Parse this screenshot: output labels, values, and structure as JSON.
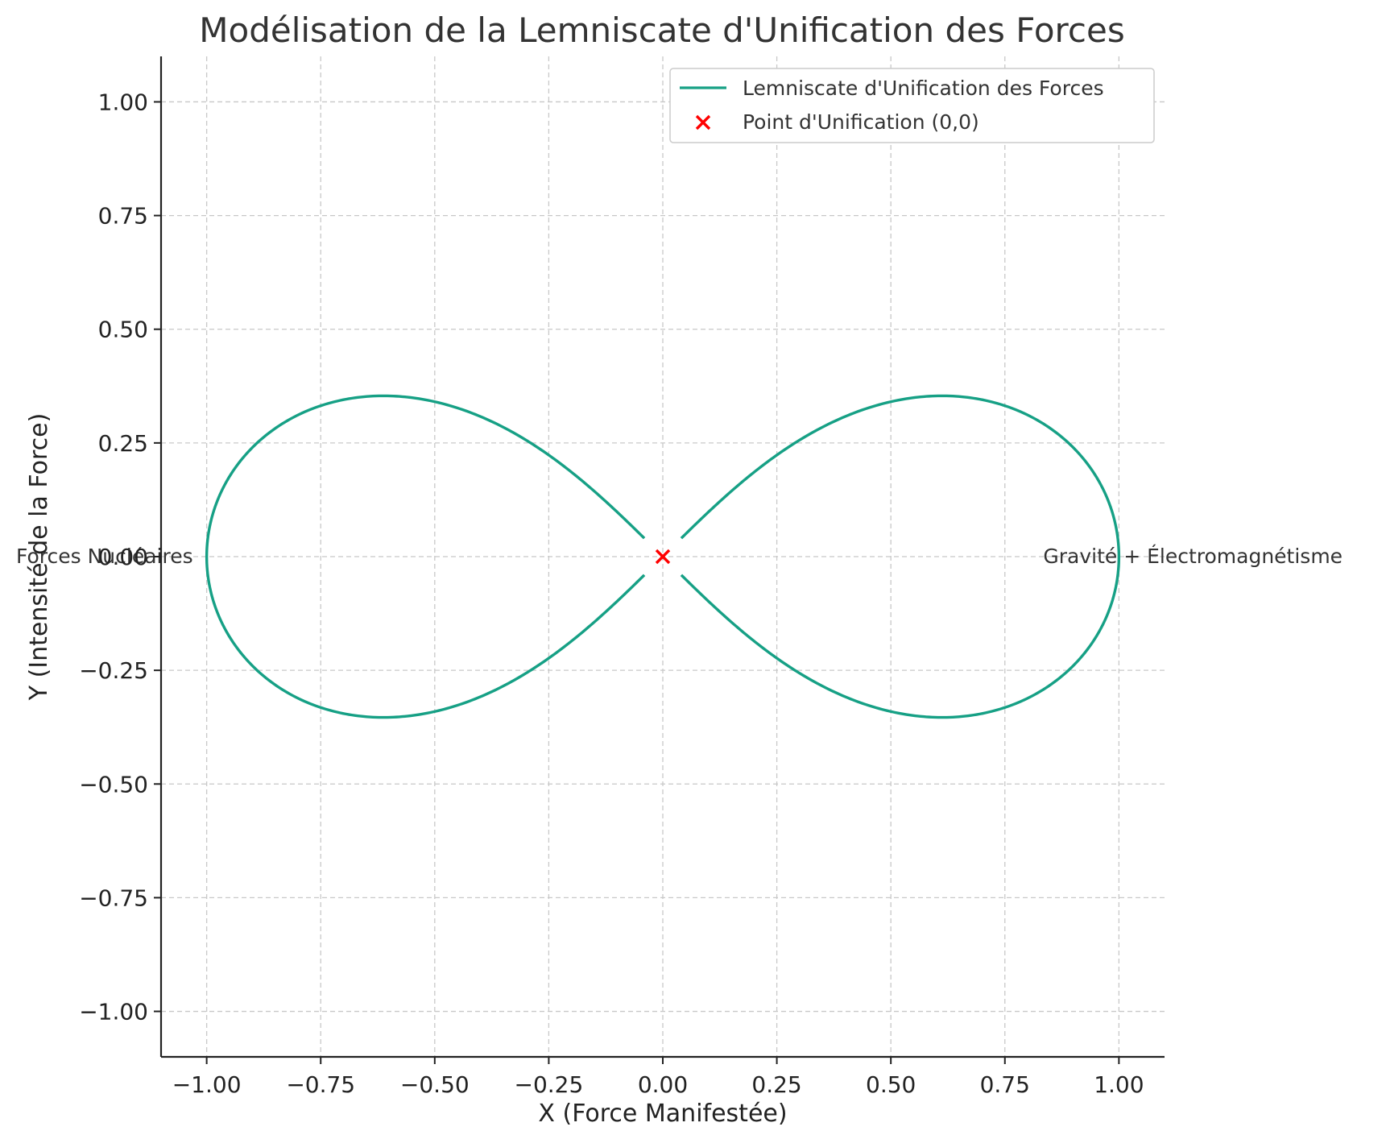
{
  "chart_data": {
    "type": "line",
    "title": "Modélisation de la Lemniscate d'Unification des Forces",
    "xlabel": "X (Force Manifestée)",
    "ylabel": "Y (Intensité de la Force)",
    "xlim": [
      -1.1,
      1.1
    ],
    "ylim": [
      -1.1,
      1.1
    ],
    "xticks": [
      -1.0,
      -0.75,
      -0.5,
      -0.25,
      0.0,
      0.25,
      0.5,
      0.75,
      1.0
    ],
    "yticks": [
      -1.0,
      -0.75,
      -0.5,
      -0.25,
      0.0,
      0.25,
      0.5,
      0.75,
      1.0
    ],
    "xtick_labels": [
      "−1.00",
      "−0.75",
      "−0.50",
      "−0.25",
      "0.00",
      "0.25",
      "0.50",
      "0.75",
      "1.00"
    ],
    "ytick_labels": [
      "−1.00",
      "−0.75",
      "−0.50",
      "−0.25",
      "0.00",
      "0.25",
      "0.50",
      "0.75",
      "1.00"
    ],
    "grid": true,
    "legend_position": "top-right",
    "series": [
      {
        "name": "Lemniscate d'Unification des Forces",
        "kind": "line",
        "color": "#16a085",
        "equation": "lemniscate of Bernoulli, a = 1",
        "x": [
          1.0,
          0.9899,
          0.9609,
          0.9152,
          0.8566,
          0.7888,
          0.7148,
          0.6371,
          0.5573,
          0.4765,
          0.3952,
          0.3139,
          0.2325,
          0.1511,
          0.0698,
          -0.0698,
          -0.1511,
          -0.2325,
          -0.3139,
          -0.3952,
          -0.4765,
          -0.5573,
          -0.6371,
          -0.7148,
          -0.7888,
          -0.8566,
          -0.9152,
          -0.9609,
          -0.9899,
          -1.0,
          -0.9899,
          -0.9609,
          -0.9152,
          -0.8566,
          -0.7888,
          -0.7148,
          -0.6371,
          -0.5573,
          -0.4765,
          -0.3952,
          -0.3139,
          -0.2325,
          -0.1511,
          -0.0698,
          0.0698,
          0.1511,
          0.2325,
          0.3139,
          0.3952,
          0.4765,
          0.5573,
          0.6371,
          0.7148,
          0.7888,
          0.8566,
          0.9152,
          0.9609,
          0.9899,
          1.0
        ],
        "y": [
          0.0,
          0.0866,
          0.1694,
          0.2452,
          0.3118,
          0.3622,
          0.386,
          0.3944,
          0.3846,
          0.3615,
          0.3281,
          0.2861,
          0.2364,
          0.1798,
          0.1151,
          -0.1151,
          -0.1798,
          -0.2364,
          -0.2861,
          -0.3281,
          -0.3615,
          -0.3846,
          -0.3944,
          -0.386,
          -0.3622,
          -0.3118,
          -0.2452,
          -0.1694,
          -0.0866,
          0.0,
          0.0866,
          0.1694,
          0.2452,
          0.3118,
          0.3622,
          0.386,
          0.3944,
          0.3846,
          0.3615,
          0.3281,
          0.2861,
          0.2364,
          0.1798,
          0.1151,
          -0.1151,
          -0.1798,
          -0.2364,
          -0.2861,
          -0.3281,
          -0.3615,
          -0.3846,
          -0.3944,
          -0.386,
          -0.3622,
          -0.3118,
          -0.2452,
          -0.1694,
          -0.0866,
          0.0
        ]
      },
      {
        "name": "Point d'Unification (0,0)",
        "kind": "marker",
        "marker": "x",
        "color": "#ff0000",
        "x": [
          0.0
        ],
        "y": [
          0.0
        ]
      }
    ],
    "annotations": [
      {
        "text": "Forces Nucléaires",
        "x": -1.1,
        "y": 0.0
      },
      {
        "text": "Gravité + Électromagnétisme",
        "x": 1.0,
        "y": 0.0
      }
    ]
  }
}
